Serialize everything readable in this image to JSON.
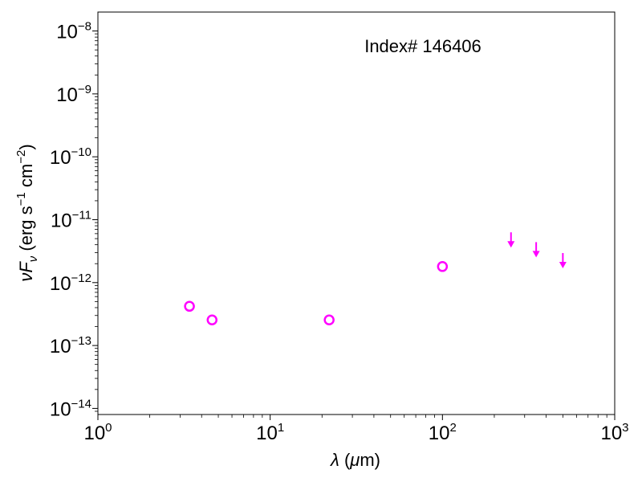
{
  "chart_data": {
    "type": "scatter",
    "title": "",
    "annotation": "Index# 146406",
    "xlabel": {
      "symbol": "λ",
      "rest": " (",
      "mu": "μ",
      "unit": "m)"
    },
    "ylabel": {
      "nu": "ν",
      "F": "F",
      "sub": "ν",
      "open": " (erg s",
      "e1": "−1",
      "mid": " cm",
      "e2": "−2",
      "close": ")"
    },
    "xscale": "log",
    "yscale": "log",
    "xlim": [
      1,
      1000
    ],
    "ylim": [
      8e-15,
      2e-08
    ],
    "x_ticks": [
      {
        "base": "10",
        "exp": "0",
        "value": 1
      },
      {
        "base": "10",
        "exp": "1",
        "value": 10
      },
      {
        "base": "10",
        "exp": "2",
        "value": 100
      },
      {
        "base": "10",
        "exp": "3",
        "value": 1000
      }
    ],
    "y_ticks": [
      {
        "base": "10",
        "exp": "−14",
        "value": 1e-14
      },
      {
        "base": "10",
        "exp": "−13",
        "value": 1e-13
      },
      {
        "base": "10",
        "exp": "−12",
        "value": 1e-12
      },
      {
        "base": "10",
        "exp": "−11",
        "value": 1e-11
      },
      {
        "base": "10",
        "exp": "−10",
        "value": 1e-10
      },
      {
        "base": "10",
        "exp": "−9",
        "value": 1e-09
      },
      {
        "base": "10",
        "exp": "−8",
        "value": 1e-08
      }
    ],
    "marker_color": "#ff00ff",
    "detections": [
      {
        "x": 3.4,
        "y": 4.2e-13
      },
      {
        "x": 4.6,
        "y": 2.55e-13
      },
      {
        "x": 22,
        "y": 2.55e-13
      },
      {
        "x": 100,
        "y": 1.8e-12
      }
    ],
    "upper_limits": [
      {
        "x": 250,
        "y": 6.3e-12
      },
      {
        "x": 350,
        "y": 4.4e-12
      },
      {
        "x": 500,
        "y": 2.95e-12
      }
    ]
  }
}
